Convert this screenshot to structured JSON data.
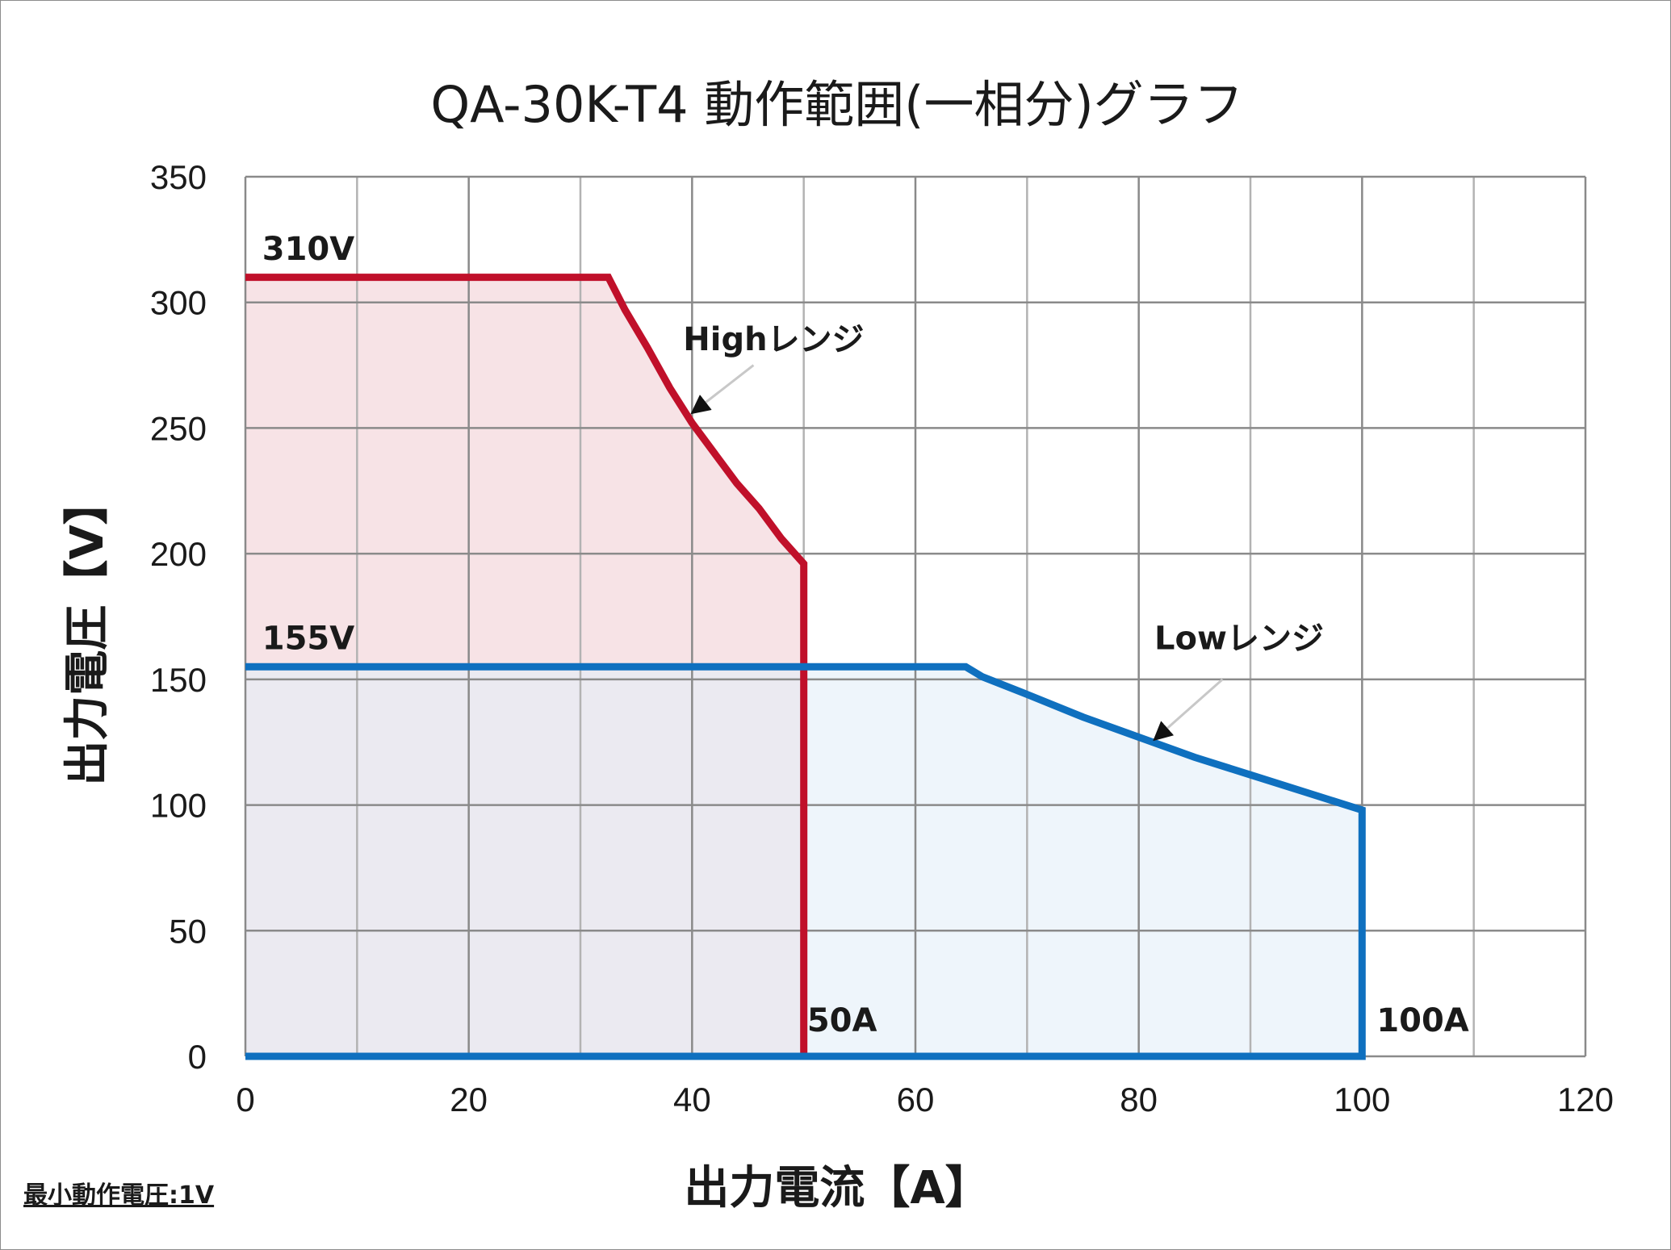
{
  "chart_data": {
    "type": "area",
    "title": "QA-30K-T4  動作範囲(一相分)グラフ",
    "xlabel": "出力電流【A】",
    "ylabel": "出力電圧【V】",
    "xlim": [
      0,
      120
    ],
    "ylim": [
      0,
      350
    ],
    "x_ticks": [
      0,
      20,
      40,
      60,
      80,
      100,
      120
    ],
    "y_ticks": [
      0,
      50,
      100,
      150,
      200,
      250,
      300,
      350
    ],
    "x_tick_labels": [
      "0",
      "20",
      "40",
      "60",
      "80",
      "100",
      "120"
    ],
    "y_tick_labels": [
      "0",
      "50",
      "100",
      "150",
      "200",
      "250",
      "300",
      "350"
    ],
    "grid": true,
    "grid_x_step": 10,
    "grid_y_step": 50,
    "series": [
      {
        "name": "Highレンジ",
        "color": "#c0102a",
        "fill": "#f7e3e6",
        "x": [
          0,
          32.5,
          34,
          36,
          38,
          40,
          42,
          44,
          46,
          48,
          50,
          50,
          0
        ],
        "y": [
          310,
          310,
          297,
          282,
          266,
          252,
          240,
          228,
          218,
          206,
          196,
          0,
          0
        ]
      },
      {
        "name": "Lowレンジ",
        "color": "#0f70bf",
        "fill": "#e3eef8",
        "x": [
          0,
          64.5,
          66,
          70,
          75,
          80,
          85,
          90,
          95,
          100,
          100,
          0
        ],
        "y": [
          155,
          155,
          151,
          144,
          135,
          127,
          119,
          112,
          105,
          98,
          0,
          0
        ]
      }
    ],
    "annotations": [
      {
        "text": "310V",
        "x": 1.5,
        "y": 317
      },
      {
        "text": "155V",
        "x": 1.5,
        "y": 162
      },
      {
        "text": "50A",
        "x": 50.3,
        "y": 10
      },
      {
        "text": "100A",
        "x": 101.3,
        "y": 10
      },
      {
        "text": "Highレンジ",
        "x": 39.2,
        "y": 281
      },
      {
        "text": "Lowレンジ",
        "x": 81.4,
        "y": 162
      }
    ],
    "arrows": [
      {
        "from": [
          45.5,
          275
        ],
        "to": [
          40,
          256
        ]
      },
      {
        "from": [
          87.5,
          150
        ],
        "to": [
          81.4,
          126
        ]
      }
    ],
    "footnote": "最小動作電圧:1V"
  }
}
